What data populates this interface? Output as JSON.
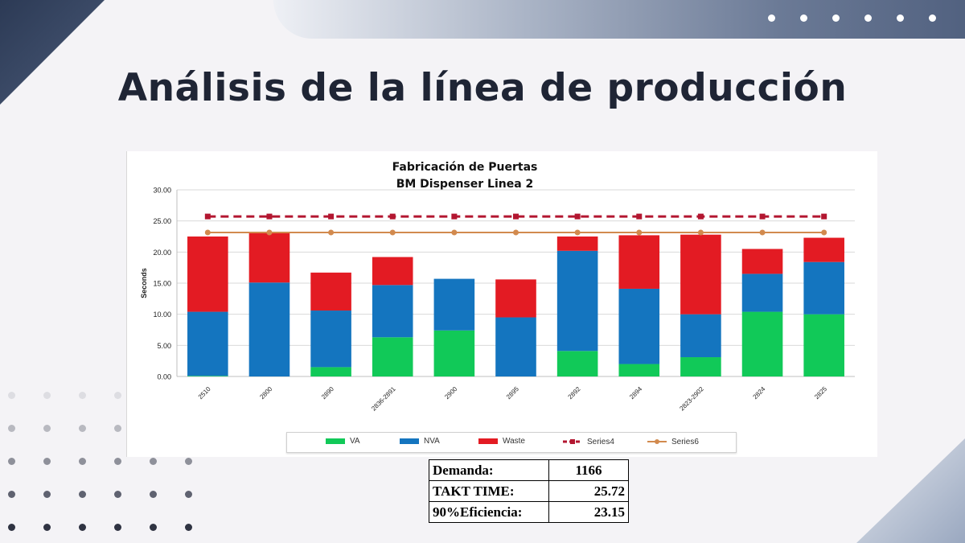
{
  "slide": {
    "title": "Análisis de la línea de producción",
    "top_dot_count": 6,
    "dot_grid_colors": [
      [
        "#dddde2",
        "#dddde2",
        "#dddde2",
        "#dddde2",
        "#f4f3f6",
        "#f4f3f6"
      ],
      [
        "#b8b9c0",
        "#b8b9c0",
        "#b8b9c0",
        "#b8b9c0",
        "#f4f3f6",
        "#f4f3f6"
      ],
      [
        "#8e909a",
        "#8e909a",
        "#8e909a",
        "#8e909a",
        "#8e909a",
        "#8e909a"
      ],
      [
        "#5f6270",
        "#5f6270",
        "#5f6270",
        "#5f6270",
        "#5f6270",
        "#5f6270"
      ],
      [
        "#2f3342",
        "#2f3342",
        "#2f3342",
        "#2f3342",
        "#2f3342",
        "#2f3342"
      ]
    ]
  },
  "chart_data": {
    "type": "bar",
    "stacked": true,
    "title": "Fabricación de Puertas",
    "subtitle": "BM Dispenser Linea 2",
    "ylabel": "Seconds",
    "xlabel": "",
    "ylim": [
      0,
      30
    ],
    "yticks": [
      "0.00",
      "5.00",
      "10.00",
      "15.00",
      "20.00",
      "25.00",
      "30.00"
    ],
    "grid": true,
    "legend_position": "bottom",
    "categories": [
      "2510",
      "2800",
      "2890",
      "2836-2891",
      "2900",
      "2895",
      "2892",
      "2894",
      "2823-2902",
      "2824",
      "2825"
    ],
    "series": [
      {
        "name": "VA",
        "color": "#11c958",
        "values": [
          0.1,
          0,
          1.5,
          6.3,
          7.4,
          0,
          4.1,
          2.0,
          3.1,
          10.4,
          10.0
        ]
      },
      {
        "name": "NVA",
        "color": "#1475bf",
        "values": [
          10.3,
          15.1,
          9.1,
          8.4,
          8.3,
          9.5,
          16.1,
          12.1,
          6.9,
          6.1,
          8.4
        ]
      },
      {
        "name": "Waste",
        "color": "#e31b23",
        "values": [
          12.1,
          8.1,
          6.1,
          4.5,
          0,
          6.1,
          2.3,
          8.6,
          12.8,
          4.0,
          3.9
        ]
      }
    ],
    "lines": [
      {
        "name": "Series4",
        "color": "#b31630",
        "style": "dashed",
        "value": 25.72
      },
      {
        "name": "Series6",
        "color": "#d28a4e",
        "style": "solid",
        "value": 23.15
      }
    ]
  },
  "summary_table": {
    "rows": [
      {
        "label": "Demanda:",
        "value": "1166"
      },
      {
        "label": "TAKT TIME:",
        "value": "25.72"
      },
      {
        "label": "90%Eficiencia:",
        "value": "23.15"
      }
    ]
  }
}
